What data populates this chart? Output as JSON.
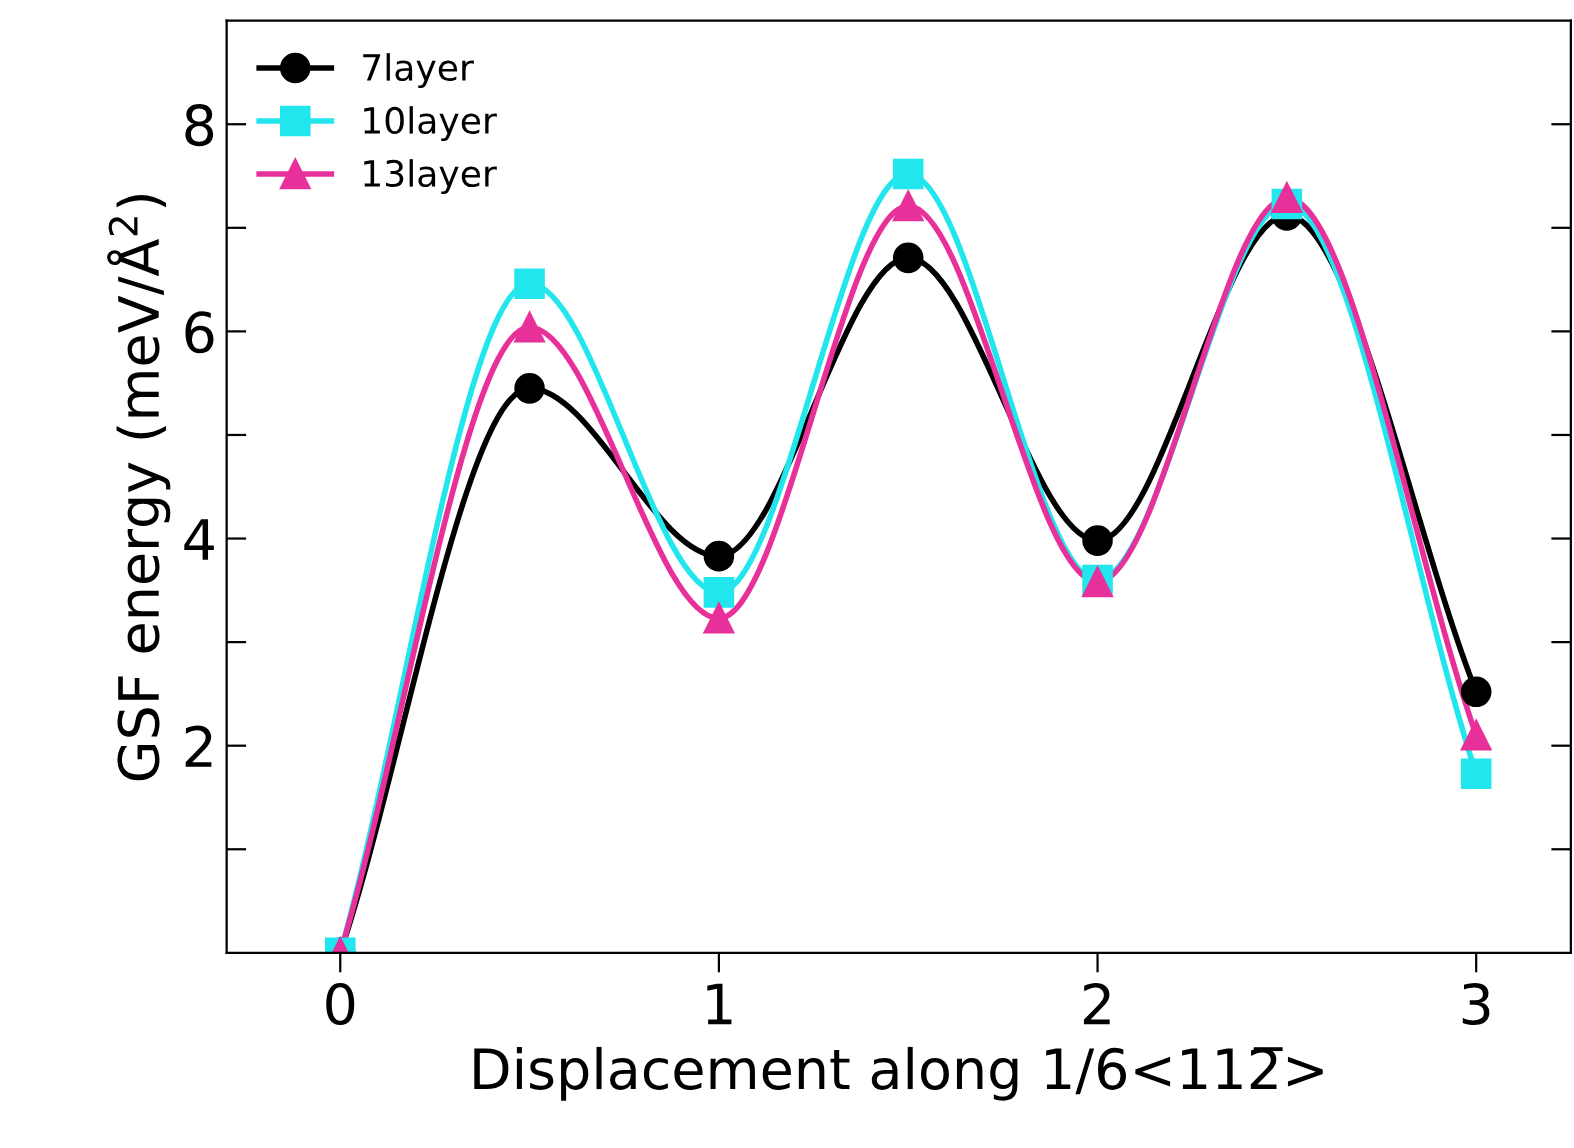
{
  "chart_data": {
    "type": "line",
    "xlabel": "Displacement along 1/6<112̅>",
    "ylabel": "GSF energy (meV/Å$^{2}$)",
    "x": [
      0,
      0.5,
      1,
      1.5,
      2,
      2.5,
      3
    ],
    "series": [
      {
        "name": "7layer",
        "color": "#000000",
        "marker": "circle",
        "values": [
          0,
          5.45,
          3.83,
          6.71,
          3.98,
          7.12,
          2.52
        ]
      },
      {
        "name": "10layer",
        "color": "#22e6ee",
        "marker": "square",
        "values": [
          0,
          6.46,
          3.48,
          7.52,
          3.6,
          7.23,
          1.73
        ]
      },
      {
        "name": "13layer",
        "color": "#e8309a",
        "marker": "triangle",
        "values": [
          0,
          6.04,
          3.23,
          7.21,
          3.58,
          7.29,
          2.1
        ]
      }
    ],
    "xlim": [
      -0.3,
      3.25
    ],
    "ylim": [
      0,
      9
    ],
    "xticks": [
      0,
      1,
      2,
      3
    ],
    "yticks": [
      {
        "value": 1,
        "label": null
      },
      2,
      {
        "value": 3,
        "label": null
      },
      4,
      {
        "value": 5,
        "label": null
      },
      6,
      {
        "value": 7,
        "label": null
      },
      8
    ],
    "grid": false,
    "legend": "top left",
    "line_style": "solid"
  }
}
